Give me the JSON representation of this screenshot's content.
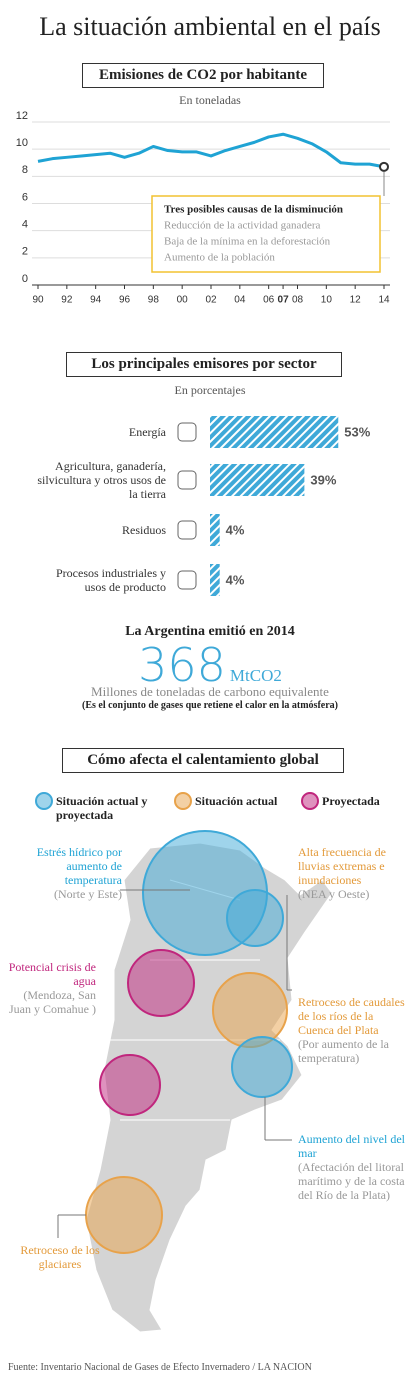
{
  "title": "La situación ambiental en el país",
  "chart_data": [
    {
      "type": "line",
      "title": "Emisiones de CO2 por habitante",
      "subtitle": "En toneladas",
      "x": [
        1990,
        1991,
        1992,
        1993,
        1994,
        1995,
        1996,
        1997,
        1998,
        1999,
        2000,
        2001,
        2002,
        2003,
        2004,
        2005,
        2006,
        2007,
        2008,
        2009,
        2010,
        2011,
        2012,
        2013,
        2014
      ],
      "values": [
        9.1,
        9.3,
        9.4,
        9.5,
        9.6,
        9.7,
        9.4,
        9.7,
        10.2,
        9.9,
        9.8,
        9.8,
        9.5,
        9.9,
        10.2,
        10.5,
        10.9,
        11.1,
        10.8,
        10.4,
        9.8,
        9.0,
        8.9,
        8.9,
        8.7
      ],
      "color": "#1fa3d4",
      "xlim": [
        1990,
        2014
      ],
      "xticks": [
        {
          "value": 1990,
          "label": "90"
        },
        {
          "value": 1992,
          "label": "92"
        },
        {
          "value": 1994,
          "label": "94"
        },
        {
          "value": 1996,
          "label": "96"
        },
        {
          "value": 1998,
          "label": "98"
        },
        {
          "value": 2000,
          "label": "00"
        },
        {
          "value": 2002,
          "label": "02"
        },
        {
          "value": 2004,
          "label": "04"
        },
        {
          "value": 2006,
          "label": "06"
        },
        {
          "value": 2007,
          "label": "07",
          "bold": true
        },
        {
          "value": 2008,
          "label": "08"
        },
        {
          "value": 2010,
          "label": "10"
        },
        {
          "value": 2012,
          "label": "12"
        },
        {
          "value": 2014,
          "label": "14"
        }
      ],
      "ylim": [
        0,
        12
      ],
      "yticks": [
        0,
        2,
        4,
        6,
        8,
        10,
        12
      ],
      "grid": true,
      "annotation": {
        "title": "Tres posibles causas de la disminución",
        "items": [
          "Reducción de la actividad ganadera",
          "Baja de la mínima en la deforestación",
          "Aumento de la población"
        ]
      }
    },
    {
      "type": "hbar",
      "title": "Los principales emisores por sector",
      "subtitle": "En porcentajes",
      "categories": [
        "Energía",
        "Agricultura, ganadería, silvicultura y otros usos de la tierra",
        "Residuos",
        "Procesos industriales y usos de producto"
      ],
      "values": [
        53,
        39,
        4,
        4
      ],
      "value_labels": [
        "53%",
        "39%",
        "4%",
        "4%"
      ],
      "color": "#3fa9d8"
    }
  ],
  "highlight": {
    "title": "La Argentina emitió en 2014",
    "value": 368,
    "unit": "MtCO2",
    "description": "Millones de toneladas de carbono equivalente",
    "note": "(Es el conjunto de gases que retiene el calor en la atmósfera)"
  },
  "map": {
    "title": "Cómo afecta el calentamiento global",
    "legend": [
      {
        "label": "Situación actual y proyectada",
        "color": "#3fa9d8"
      },
      {
        "label": "Situación actual",
        "color": "#e8a24a"
      },
      {
        "label": "Proyectada",
        "color": "#c0267d"
      }
    ],
    "annotations": [
      {
        "title": "Estrés hídrico por aumento de temperatura",
        "detail": "(Norte y Este)",
        "color": "#1fa3d4"
      },
      {
        "title": "Alta frecuencia de lluvias extremas e inundaciones",
        "detail": "(NEA y Oeste)",
        "color": "#e39a3a"
      },
      {
        "title": "Potencial crisis de agua",
        "detail": "(Mendoza, San Juan y Comahue )",
        "color": "#c0267d"
      },
      {
        "title": "Retroceso de caudales de los ríos de la Cuenca del Plata",
        "detail": "(Por aumento de la temperatura)",
        "color": "#e39a3a"
      },
      {
        "title": "Aumento del nivel del mar",
        "detail": "(Afectación del litoral marítimo y de la costa del Río de la Plata)",
        "color": "#1fa3d4"
      },
      {
        "title": "Retroceso de los glaciares",
        "color": "#e39a3a"
      }
    ]
  },
  "source": "Fuente: Inventario Nacional de Gases de Efecto Invernadero / LA NACION"
}
